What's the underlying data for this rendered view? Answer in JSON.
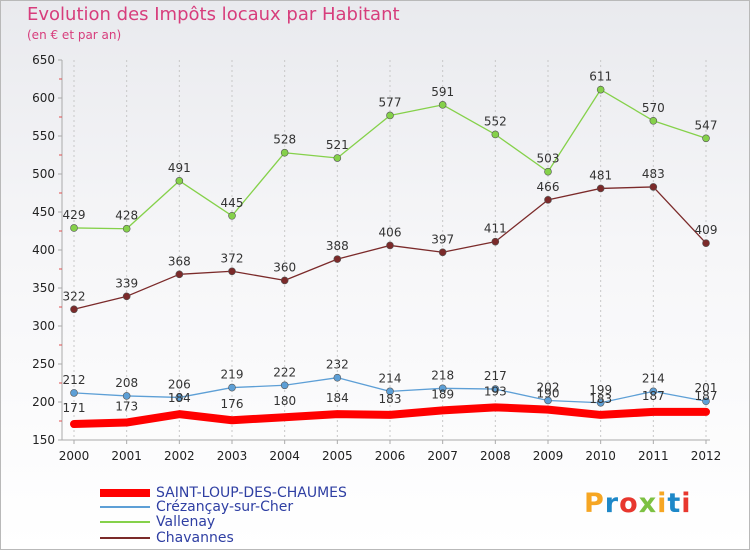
{
  "header": {
    "title": "Evolution des Impôts locaux par Habitant",
    "subtitle": "(en € et par an)"
  },
  "logo": {
    "text": "Proxiti",
    "letter_colors": [
      "#f6a623",
      "#1e88c8",
      "#e8372e",
      "#7dc142",
      "#f6a623",
      "#1e88c8",
      "#e8372e"
    ]
  },
  "colors": {
    "axis": "#aaaaaa",
    "tick_text": "#222222",
    "value_text": "#333333",
    "grid": "#c8c8c8",
    "title": "#d73d7c",
    "legend_text": "#2f3fa3"
  },
  "chart_data": {
    "type": "line",
    "x": [
      "2000",
      "2001",
      "2002",
      "2003",
      "2004",
      "2005",
      "2006",
      "2007",
      "2008",
      "2009",
      "2010",
      "2011",
      "2012"
    ],
    "ylim": [
      150,
      650
    ],
    "yticks": [
      "150",
      "200",
      "250",
      "300",
      "350",
      "400",
      "450",
      "500",
      "550",
      "600",
      "650"
    ],
    "grid": true,
    "legend_placement": "bottom-left",
    "series": [
      {
        "name": "SAINT-LOUP-DES-CHAUMES",
        "color": "#ff0000",
        "values": [
          171,
          173,
          184,
          176,
          180,
          184,
          183,
          189,
          193,
          190,
          183,
          187,
          187
        ],
        "labels": [
          "171",
          "173",
          "184",
          "176",
          "180",
          "184",
          "183",
          "189",
          "193",
          "190",
          "183",
          "187",
          "187"
        ]
      },
      {
        "name": "Crézançay-sur-Cher",
        "color": "#5d9fd6",
        "values": [
          212,
          208,
          206,
          219,
          222,
          232,
          214,
          218,
          217,
          202,
          199,
          214,
          201
        ],
        "labels": [
          "212",
          "208",
          "206",
          "219",
          "222",
          "232",
          "214",
          "218",
          "217",
          "202",
          "199",
          "214",
          "201"
        ]
      },
      {
        "name": "Vallenay",
        "color": "#85d14a",
        "values": [
          429,
          428,
          491,
          445,
          528,
          521,
          577,
          591,
          552,
          503,
          611,
          570,
          547
        ],
        "labels": [
          "429",
          "428",
          "491",
          "445",
          "528",
          "521",
          "577",
          "591",
          "552",
          "503",
          "611",
          "570",
          "547"
        ]
      },
      {
        "name": "Chavannes",
        "color": "#7b2a2a",
        "values": [
          322,
          339,
          368,
          372,
          360,
          388,
          406,
          397,
          411,
          466,
          481,
          483,
          409
        ],
        "labels": [
          "322",
          "339",
          "368",
          "372",
          "360",
          "388",
          "406",
          "397",
          "411",
          "466",
          "481",
          "483",
          "409"
        ]
      }
    ]
  }
}
